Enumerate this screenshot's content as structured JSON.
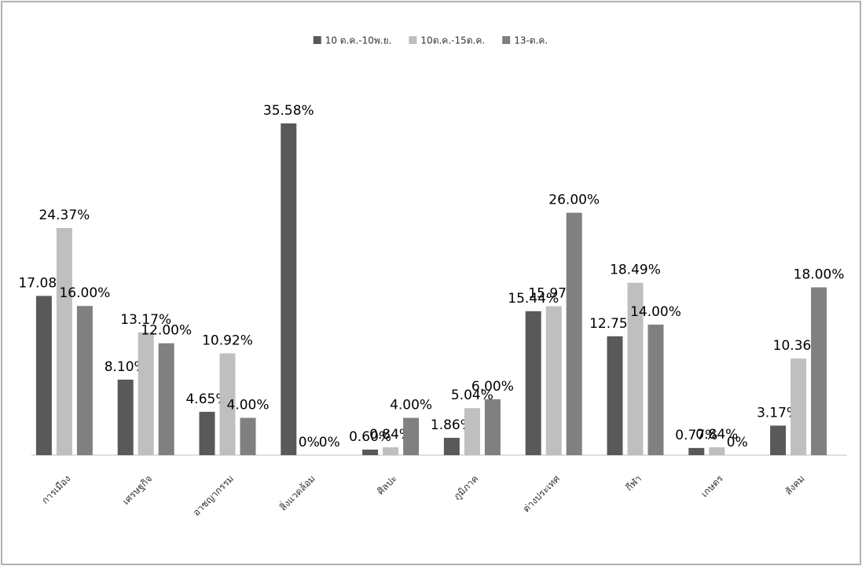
{
  "chart_data": {
    "type": "bar",
    "categories": [
      "การเมือง",
      "เศรษฐกิจ",
      "อาชญากรรม",
      "สิ่งแวดล้อม",
      "ศิลปะ",
      "ภูมิภาค",
      "ต่างประเทศ",
      "กีฬา",
      "เกษตร",
      "สังคม"
    ],
    "series": [
      {
        "name": "10 ต.ค.-10พ.ย.",
        "color": "#595959",
        "values": [
          17.08,
          8.1,
          4.65,
          35.58,
          0.6,
          1.86,
          15.44,
          12.75,
          0.77,
          3.17
        ],
        "value_labels": [
          "17.08%",
          "8.10%",
          "4.65%",
          "35.58%",
          "0.60%",
          "1.86%",
          "15.44%",
          "12.75%",
          "0.77%",
          "3.17%"
        ]
      },
      {
        "name": "10ต.ค.-15ต.ค.",
        "color": "#bfbfbf",
        "values": [
          24.37,
          13.17,
          10.92,
          0,
          0.84,
          5.04,
          15.97,
          18.49,
          0.84,
          10.36
        ],
        "value_labels": [
          "24.37%",
          "13.17%",
          "10.92%",
          "0%",
          "0.84%",
          "5.04%",
          "15.97%",
          "18.49%",
          "0.84%",
          "10.36%"
        ]
      },
      {
        "name": "13-ต.ค.",
        "color": "#808080",
        "values": [
          16,
          12,
          4,
          0,
          4,
          6,
          26,
          14,
          0,
          18
        ],
        "value_labels": [
          "16.00%",
          "12.00%",
          "4.00%",
          "0%",
          "4.00%",
          "6.00%",
          "26.00%",
          "14.00%",
          "0%",
          "18.00%"
        ]
      }
    ],
    "legend": "top"
  }
}
